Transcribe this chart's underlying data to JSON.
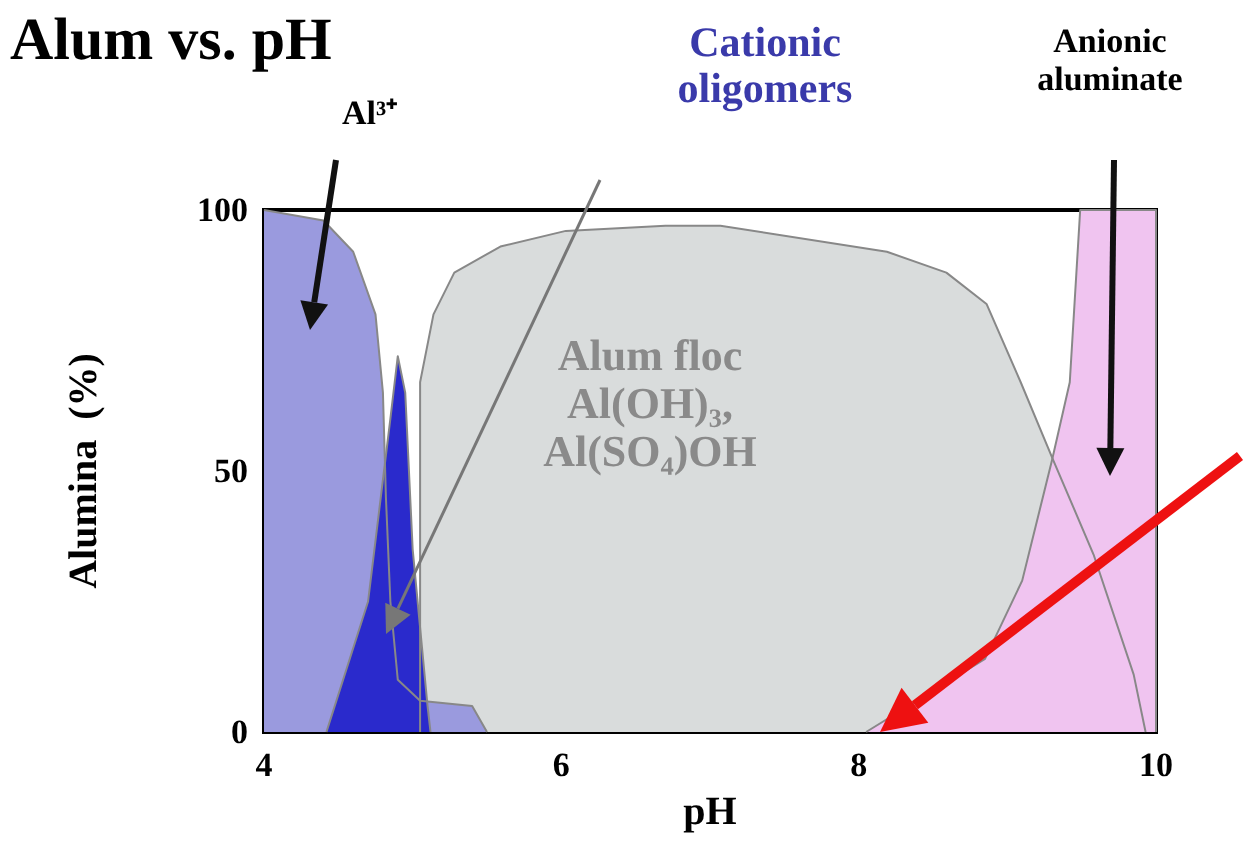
{
  "chart_data": {
    "type": "area",
    "title": "Alum vs. pH",
    "xlabel": "pH",
    "ylabel": "Alumina  (%)",
    "xlim": [
      4,
      10
    ],
    "xticks": [
      4,
      6,
      8,
      10
    ],
    "ylim": [
      0,
      100
    ],
    "yticks": [
      0,
      50,
      100
    ],
    "grid": false,
    "series": [
      {
        "color": "#d9dcdc",
        "x": [
          5.05,
          5.05,
          5.14,
          5.28,
          5.59,
          6.03,
          6.7,
          7.07,
          8.19,
          8.59,
          8.86,
          9.09,
          9.31,
          9.58,
          9.85,
          9.93
        ],
        "values": [
          0,
          67,
          80,
          88,
          93,
          96,
          97,
          97,
          92,
          88,
          82,
          67,
          52,
          34,
          11,
          0
        ]
      },
      {
        "color": "#f0c4f0",
        "x": [
          8.05,
          8.85,
          9.1,
          9.3,
          9.42,
          9.49,
          10,
          10
        ],
        "values": [
          0,
          14,
          29,
          52,
          67,
          100,
          100,
          0
        ]
      },
      {
        "color": "#9a9ade",
        "x": [
          4,
          4.4,
          4.6,
          4.75,
          4.8,
          4.82,
          4.85,
          4.9,
          5.05,
          5.4,
          5.5
        ],
        "values": [
          100,
          98,
          92,
          80,
          65,
          45,
          25,
          10,
          6,
          5,
          0
        ]
      },
      {
        "color": "#2a2acc",
        "x": [
          4.42,
          4.7,
          4.85,
          4.9,
          4.95,
          5.0,
          5.1,
          5.12
        ],
        "values": [
          0,
          25,
          60,
          72,
          65,
          35,
          5,
          0
        ]
      }
    ],
    "annotations": [
      "Al³⁺",
      "Cationic oligomers",
      "Anionic aluminate",
      "Alum floc Al(OH)₃, Al(SO₄)OH"
    ]
  }
}
